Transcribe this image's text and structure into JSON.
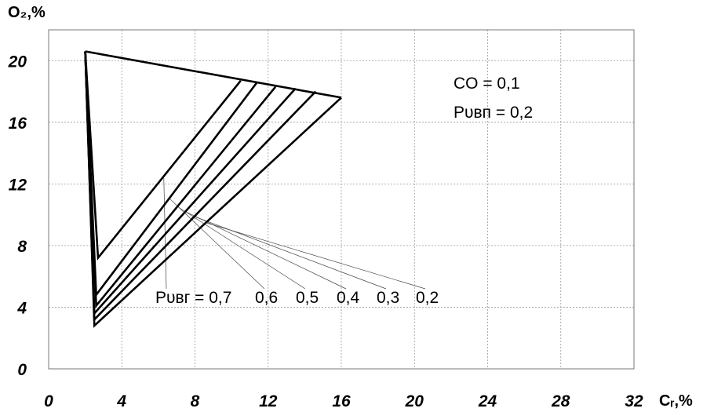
{
  "chart_data": {
    "type": "line",
    "ylabel": "O₂,%",
    "xlabel": "Cᵣ,%",
    "xlim": [
      0,
      32
    ],
    "ylim": [
      0,
      22
    ],
    "x_ticks": [
      "0",
      "4",
      "8",
      "12",
      "16",
      "20",
      "24",
      "28",
      "32"
    ],
    "y_ticks": [
      "0",
      "4",
      "8",
      "12",
      "16",
      "20"
    ],
    "grid": true,
    "annotations": {
      "co": "CO  = 0,1",
      "pyvn": "Pᴜʙп = 0,2",
      "pyvr_prefix": "Pᴜʙг = 0,7",
      "pyvr_values": [
        "0,6",
        "0,5",
        "0,4",
        "0,3",
        "0,2"
      ]
    },
    "series": [
      {
        "pyvr": "0,7",
        "x": [
          2.0,
          2.7,
          10.5
        ],
        "y": [
          20.6,
          7.2,
          18.7
        ]
      },
      {
        "pyvr": "0,6",
        "x": [
          2.0,
          2.6,
          11.4
        ],
        "y": [
          20.6,
          4.8,
          18.6
        ]
      },
      {
        "pyvr": "0,5",
        "x": [
          2.0,
          2.6,
          12.4
        ],
        "y": [
          20.6,
          4.1,
          18.3
        ]
      },
      {
        "pyvr": "0,4",
        "x": [
          2.0,
          2.5,
          13.5
        ],
        "y": [
          20.6,
          3.6,
          18.2
        ]
      },
      {
        "pyvr": "0,3",
        "x": [
          2.0,
          2.5,
          14.6
        ],
        "y": [
          20.6,
          3.2,
          18.0
        ]
      },
      {
        "pyvr": "0,2",
        "x": [
          2.0,
          2.5,
          16.0
        ],
        "y": [
          20.6,
          2.8,
          17.6
        ]
      }
    ],
    "envelope": {
      "x": [
        2.0,
        16.0
      ],
      "y": [
        20.6,
        17.6
      ]
    }
  }
}
